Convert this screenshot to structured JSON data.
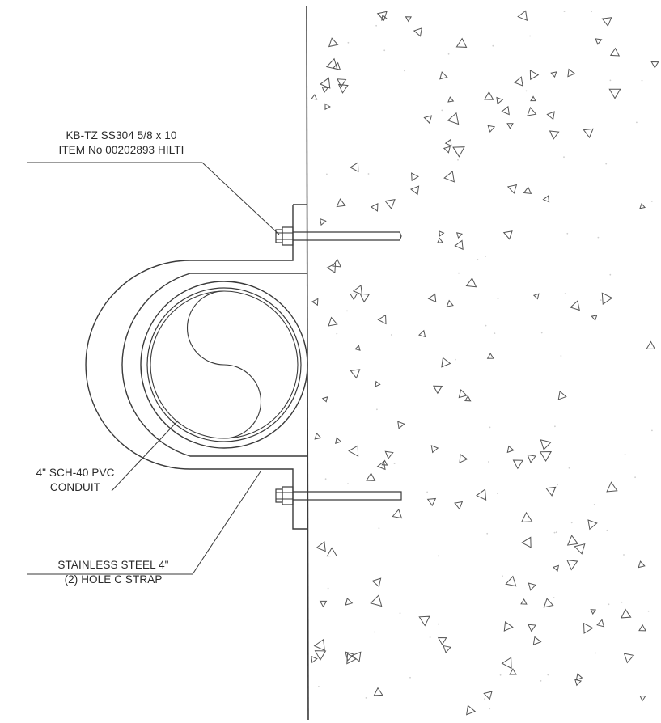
{
  "callouts": {
    "anchor": {
      "line1": "KB-TZ SS304 5/8 x 10",
      "line2": "ITEM No 00202893 HILTI"
    },
    "conduit": {
      "line1": "4\" SCH-40 PVC",
      "line2": "CONDUIT"
    },
    "strap": {
      "line1": "STAINLESS STEEL 4\"",
      "line2": "(2) HOLE C STRAP"
    }
  }
}
